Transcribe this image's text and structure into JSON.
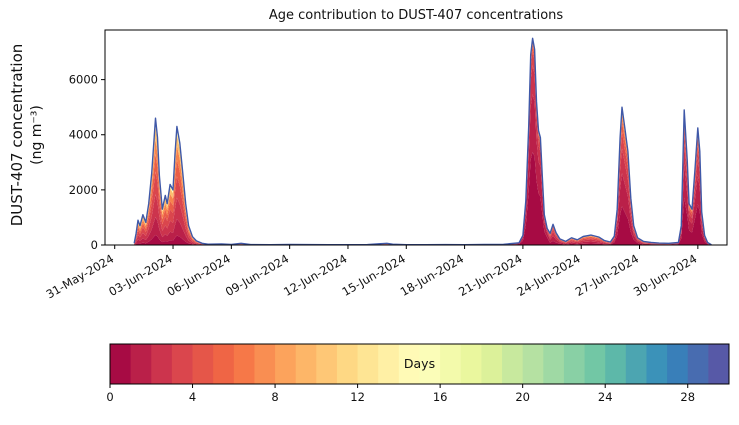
{
  "chart_data": {
    "type": "area",
    "title": "Age contribution to DUST-407 concentrations",
    "ylabel_line1": "DUST-407 concentration",
    "ylabel_line2": "(ng m⁻³)",
    "xlabel": "",
    "xtick_labels": [
      "31-May-2024",
      "03-Jun-2024",
      "06-Jun-2024",
      "09-Jun-2024",
      "12-Jun-2024",
      "15-Jun-2024",
      "18-Jun-2024",
      "21-Jun-2024",
      "24-Jun-2024",
      "27-Jun-2024",
      "30-Jun-2024"
    ],
    "xtick_days": [
      0,
      3,
      6,
      9,
      12,
      15,
      18,
      21,
      24,
      27,
      30
    ],
    "yticks": [
      0,
      2000,
      4000,
      6000
    ],
    "ylim": [
      0,
      7800
    ],
    "xlim": [
      -0.5,
      31.5
    ],
    "grid": false,
    "outline_color": "#3f58a8",
    "colormap_stops": [
      [
        0.0,
        "#9e0142"
      ],
      [
        0.1,
        "#d53e4f"
      ],
      [
        0.2,
        "#f46d43"
      ],
      [
        0.3,
        "#fdae61"
      ],
      [
        0.4,
        "#fee08b"
      ],
      [
        0.5,
        "#ffffbf"
      ],
      [
        0.6,
        "#e6f598"
      ],
      [
        0.7,
        "#abdda4"
      ],
      [
        0.8,
        "#66c2a5"
      ],
      [
        0.9,
        "#3288bd"
      ],
      [
        1.0,
        "#5e4fa2"
      ]
    ],
    "age_bins": [
      0.5,
      1.5,
      2.5,
      3.5,
      5,
      7,
      10,
      15,
      25
    ],
    "compositions": {
      "e1": [
        0.08,
        0.14,
        0.18,
        0.18,
        0.14,
        0.12,
        0.1,
        0.05,
        0.01
      ],
      "mid": [
        0.05,
        0.1,
        0.15,
        0.2,
        0.2,
        0.15,
        0.1,
        0.04,
        0.01
      ],
      "mid2": [
        0.15,
        0.2,
        0.2,
        0.15,
        0.12,
        0.08,
        0.05,
        0.03,
        0.02
      ],
      "big": [
        0.45,
        0.28,
        0.14,
        0.07,
        0.03,
        0.02,
        0.005,
        0.003,
        0.002
      ],
      "big2": [
        0.2,
        0.25,
        0.2,
        0.15,
        0.1,
        0.05,
        0.03,
        0.01,
        0.01
      ],
      "e3": [
        0.28,
        0.24,
        0.18,
        0.12,
        0.08,
        0.05,
        0.03,
        0.015,
        0.005
      ],
      "e4": [
        0.35,
        0.25,
        0.15,
        0.1,
        0.07,
        0.04,
        0.02,
        0.015,
        0.005
      ]
    },
    "points": [
      [
        1.0,
        60,
        "e1"
      ],
      [
        1.1,
        420,
        "e1"
      ],
      [
        1.2,
        900,
        "e1"
      ],
      [
        1.3,
        700,
        "e1"
      ],
      [
        1.45,
        1100,
        "e1"
      ],
      [
        1.6,
        820,
        "e1"
      ],
      [
        1.75,
        1500,
        "e1"
      ],
      [
        1.9,
        2600,
        "e1"
      ],
      [
        2.0,
        3600,
        "e1"
      ],
      [
        2.1,
        4600,
        "e1"
      ],
      [
        2.2,
        3900,
        "e1"
      ],
      [
        2.3,
        2500,
        "e1"
      ],
      [
        2.45,
        1300,
        "e1"
      ],
      [
        2.6,
        1800,
        "e1"
      ],
      [
        2.7,
        1500,
        "e1"
      ],
      [
        2.85,
        2200,
        "e1"
      ],
      [
        3.0,
        2000,
        "e1"
      ],
      [
        3.1,
        3300,
        "e1"
      ],
      [
        3.2,
        4300,
        "e1"
      ],
      [
        3.35,
        3700,
        "e1"
      ],
      [
        3.5,
        2600,
        "e1"
      ],
      [
        3.65,
        1500,
        "e1"
      ],
      [
        3.8,
        700,
        "e1"
      ],
      [
        4.0,
        300,
        "e1"
      ],
      [
        4.2,
        150,
        "e1"
      ],
      [
        4.5,
        60,
        "e1"
      ],
      [
        4.8,
        30,
        "mid"
      ],
      [
        5.5,
        40,
        "mid"
      ],
      [
        6.0,
        20,
        "mid"
      ],
      [
        6.5,
        60,
        "mid"
      ],
      [
        7.0,
        15,
        "mid"
      ],
      [
        8.0,
        10,
        "mid"
      ],
      [
        9.0,
        20,
        "mid"
      ],
      [
        10.0,
        15,
        "mid"
      ],
      [
        11.0,
        10,
        "mid"
      ],
      [
        12.0,
        12,
        "mid"
      ],
      [
        13.0,
        15,
        "mid"
      ],
      [
        14.0,
        60,
        "mid"
      ],
      [
        14.3,
        30,
        "mid"
      ],
      [
        15.0,
        12,
        "mid"
      ],
      [
        16.0,
        10,
        "mid"
      ],
      [
        17.0,
        15,
        "mid"
      ],
      [
        18.0,
        12,
        "mid"
      ],
      [
        19.0,
        20,
        "mid"
      ],
      [
        20.0,
        25,
        "mid"
      ],
      [
        20.8,
        80,
        "big"
      ],
      [
        21.0,
        350,
        "big"
      ],
      [
        21.15,
        1600,
        "big"
      ],
      [
        21.3,
        4300,
        "big"
      ],
      [
        21.4,
        6900,
        "big"
      ],
      [
        21.5,
        7500,
        "big"
      ],
      [
        21.6,
        7100,
        "big"
      ],
      [
        21.7,
        5200,
        "big"
      ],
      [
        21.8,
        4150,
        "big"
      ],
      [
        21.9,
        3900,
        "big"
      ],
      [
        22.0,
        2500,
        "big"
      ],
      [
        22.1,
        1100,
        "big"
      ],
      [
        22.25,
        600,
        "big"
      ],
      [
        22.4,
        420,
        "big2"
      ],
      [
        22.55,
        750,
        "big2"
      ],
      [
        22.7,
        450,
        "big2"
      ],
      [
        22.9,
        220,
        "big2"
      ],
      [
        23.2,
        130,
        "mid2"
      ],
      [
        23.5,
        260,
        "mid2"
      ],
      [
        23.8,
        190,
        "mid2"
      ],
      [
        24.1,
        310,
        "mid2"
      ],
      [
        24.5,
        360,
        "mid2"
      ],
      [
        24.9,
        290,
        "mid2"
      ],
      [
        25.2,
        160,
        "mid2"
      ],
      [
        25.5,
        110,
        "mid2"
      ],
      [
        25.7,
        320,
        "e3"
      ],
      [
        25.85,
        1300,
        "e3"
      ],
      [
        26.0,
        3900,
        "e3"
      ],
      [
        26.1,
        5000,
        "e3"
      ],
      [
        26.25,
        4200,
        "e3"
      ],
      [
        26.4,
        3400,
        "e3"
      ],
      [
        26.55,
        1700,
        "e3"
      ],
      [
        26.7,
        700,
        "e3"
      ],
      [
        26.9,
        260,
        "e3"
      ],
      [
        27.2,
        130,
        "mid2"
      ],
      [
        27.6,
        90,
        "mid2"
      ],
      [
        28.0,
        70,
        "mid2"
      ],
      [
        28.5,
        60,
        "mid2"
      ],
      [
        29.0,
        90,
        "e4"
      ],
      [
        29.15,
        700,
        "e4"
      ],
      [
        29.3,
        4900,
        "e4"
      ],
      [
        29.45,
        3100,
        "e4"
      ],
      [
        29.55,
        1500,
        "e4"
      ],
      [
        29.7,
        1300,
        "e4"
      ],
      [
        29.85,
        2700,
        "e4"
      ],
      [
        30.0,
        4250,
        "e4"
      ],
      [
        30.1,
        3400,
        "e4"
      ],
      [
        30.2,
        1200,
        "e4"
      ],
      [
        30.35,
        350,
        "e4"
      ],
      [
        30.5,
        90,
        "e4"
      ],
      [
        30.7,
        10,
        "e4"
      ]
    ],
    "colorbar": {
      "label": "Days",
      "min": 0,
      "max": 30,
      "segments": 30,
      "ticks": [
        0,
        4,
        8,
        12,
        16,
        20,
        24,
        28
      ]
    }
  }
}
